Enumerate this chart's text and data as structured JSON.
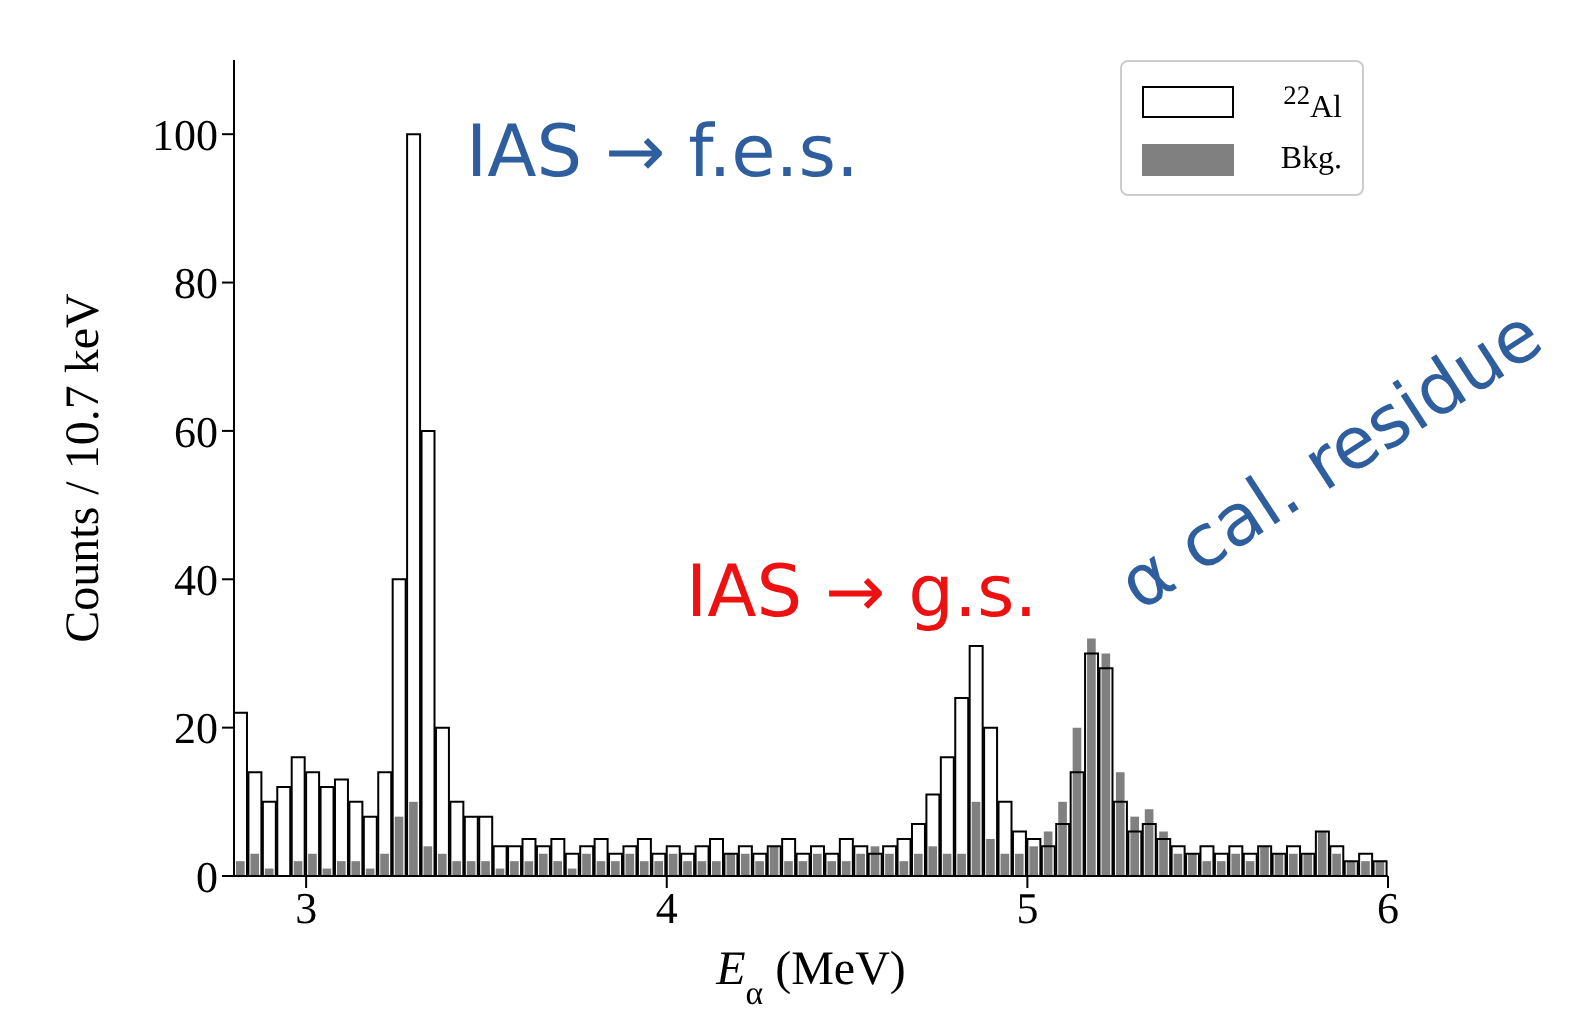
{
  "chart_data": {
    "type": "histogram",
    "xlabel": "E$_{α}$ (MeV)",
    "ylabel": "Counts / 10.7 keV",
    "bins": [
      2.8,
      2.84,
      2.88,
      2.92,
      2.96,
      3.0,
      3.04,
      3.08,
      3.12,
      3.16,
      3.2,
      3.24,
      3.28,
      3.32,
      3.36,
      3.4,
      3.44,
      3.48,
      3.52,
      3.56,
      3.6,
      3.64,
      3.68,
      3.72,
      3.76,
      3.8,
      3.84,
      3.88,
      3.92,
      3.96,
      4.0,
      4.04,
      4.08,
      4.12,
      4.16,
      4.2,
      4.24,
      4.28,
      4.32,
      4.36,
      4.4,
      4.44,
      4.48,
      4.52,
      4.56,
      4.6,
      4.64,
      4.68,
      4.72,
      4.76,
      4.8,
      4.84,
      4.88,
      4.92,
      4.96,
      5.0,
      5.04,
      5.08,
      5.12,
      5.16,
      5.2,
      5.24,
      5.28,
      5.32,
      5.36,
      5.4,
      5.44,
      5.48,
      5.52,
      5.56,
      5.6,
      5.64,
      5.68,
      5.72,
      5.76,
      5.8,
      5.84,
      5.88,
      5.92,
      5.96,
      6.0
    ],
    "series": [
      {
        "name": "$^{22}$Al",
        "color": "#000000",
        "values": [
          22,
          14,
          10,
          12,
          16,
          14,
          12,
          13,
          10,
          8,
          14,
          40,
          100,
          60,
          20,
          10,
          8,
          8,
          4,
          4,
          5,
          4,
          5,
          3,
          4,
          5,
          3,
          4,
          5,
          3,
          4,
          3,
          4,
          5,
          3,
          4,
          3,
          4,
          5,
          3,
          4,
          3,
          5,
          4,
          3,
          4,
          5,
          7,
          11,
          16,
          24,
          31,
          20,
          10,
          6,
          5,
          4,
          7,
          14,
          30,
          28,
          10,
          6,
          7,
          5,
          4,
          3,
          4,
          3,
          4,
          3,
          4,
          3,
          4,
          3,
          6,
          4,
          2,
          3,
          2
        ]
      },
      {
        "name": "Bkg.",
        "color": "#808080",
        "values": [
          2,
          3,
          1,
          0,
          2,
          3,
          1,
          2,
          2,
          1,
          3,
          8,
          10,
          4,
          3,
          2,
          2,
          2,
          1,
          2,
          2,
          3,
          2,
          1,
          3,
          2,
          2,
          3,
          2,
          2,
          3,
          2,
          2,
          2,
          3,
          3,
          2,
          4,
          2,
          2,
          3,
          2,
          2,
          3,
          4,
          3,
          2,
          3,
          4,
          3,
          3,
          10,
          5,
          3,
          3,
          4,
          6,
          10,
          20,
          32,
          30,
          14,
          8,
          9,
          6,
          3,
          3,
          2,
          2,
          3,
          2,
          4,
          3,
          3,
          3,
          6,
          3,
          2,
          2,
          2
        ]
      }
    ],
    "xlim": [
      2.8,
      6.0
    ],
    "xticks": [
      3,
      4,
      5,
      6
    ],
    "ylim": [
      0,
      110
    ],
    "yticks": [
      0,
      20,
      40,
      60,
      80,
      100
    ],
    "legend": "top right",
    "grid": false,
    "annotations": [
      "IAS → f.e.s.",
      "IAS → g.s.",
      "α cal. residue"
    ]
  }
}
